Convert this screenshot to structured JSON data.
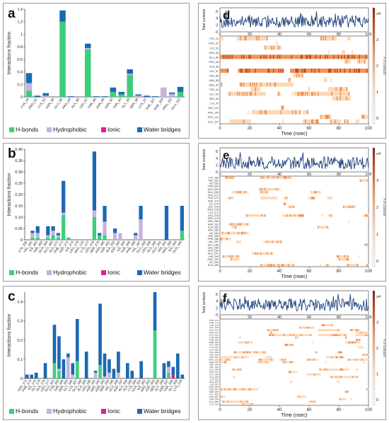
{
  "colors": {
    "hbond": "#3dce7c",
    "hydrophobic": "#c4b4dd",
    "ionic": "#e0218a",
    "water": "#1a69b5",
    "trace": "#1b3f7a",
    "heat_light": "#fbd8b8",
    "heat_mid": "#ee9557",
    "heat_dark": "#c9491f"
  },
  "legend_labels": [
    "H-bonds",
    "Hydrophobic",
    "Ionic",
    "Water bridges"
  ],
  "bar_panels": [
    {
      "letter": "a",
      "ylabel": "Interactions fraction",
      "ymax": 1.4,
      "ticks": [
        "0",
        "0.2",
        "0.4",
        "0.6",
        "0.8",
        "1",
        "1.2",
        "1.4"
      ],
      "tickvals": [
        0,
        0.2,
        0.4,
        0.6,
        0.8,
        1.0,
        1.2,
        1.4
      ],
      "categories": [
        "TYR_24",
        "PRO_51",
        "LYS_51",
        "ASN_56",
        "GLU_80",
        "PRO_85",
        "ALA_86",
        "LEU_87",
        "THR_88",
        "ASN_89",
        "ASN_93",
        "THR_94",
        "GLY_95",
        "SER_96",
        "LYS_97",
        "THR_107",
        "PHE_109",
        "PRO_111",
        "GLU_112"
      ],
      "series": [
        {
          "key": "hbond",
          "values": [
            0.1,
            0.0,
            0.0,
            0.0,
            1.2,
            0.0,
            0.0,
            0.76,
            0.0,
            0.0,
            0.08,
            0.04,
            0.35,
            0.0,
            0.0,
            0.0,
            0.0,
            0.0,
            0.08
          ]
        },
        {
          "key": "hydrophobic",
          "values": [
            0.12,
            0.0,
            0.02,
            0.0,
            0.0,
            0.0,
            0.0,
            0.02,
            0.0,
            0.0,
            0.0,
            0.0,
            0.02,
            0.02,
            0.0,
            0.0,
            0.15,
            0.05,
            0.0
          ]
        },
        {
          "key": "ionic",
          "values": [
            0.0,
            0.0,
            0.0,
            0.0,
            0.0,
            0.0,
            0.0,
            0.0,
            0.0,
            0.0,
            0.0,
            0.0,
            0.0,
            0.0,
            0.0,
            0.0,
            0.0,
            0.0,
            0.0
          ]
        },
        {
          "key": "water",
          "values": [
            0.16,
            0.02,
            0.04,
            0.0,
            0.18,
            0.01,
            0.0,
            0.07,
            0.01,
            0.01,
            0.07,
            0.04,
            0.07,
            0.02,
            0.02,
            0.01,
            0.0,
            0.02,
            0.08
          ]
        }
      ]
    },
    {
      "letter": "b",
      "ylabel": "Interactions fraction",
      "ymax": 0.4,
      "ticks": [
        "0",
        "0.05",
        "0.10",
        "0.15",
        "0.20",
        "0.25",
        "0.30",
        "0.35",
        "0.40"
      ],
      "tickvals": [
        0,
        0.05,
        0.1,
        0.15,
        0.2,
        0.25,
        0.3,
        0.35,
        0.4
      ],
      "categories": [
        "LYS_256",
        "VAL_261",
        "ILE_262",
        "THR_263",
        "GLN_264",
        "GLU_265",
        "ALA_271",
        "PHE_272",
        "ASP_273",
        "ILE_274",
        "LEU_275",
        "ARG_276",
        "LYS_277",
        "LEU_278",
        "SER_279",
        "ASN_280",
        "ASP_281",
        "ALA_282",
        "ASP_283",
        "ILE_284",
        "THR_285",
        "PHE_286",
        "VAL_287",
        "GLU_288",
        "LEU_289",
        "ALA_290",
        "GLU_291",
        "HIS_292",
        "ARG_293",
        "ILE_294",
        "GLN_295"
      ],
      "series": [
        {
          "key": "hbond",
          "values": [
            0.0,
            0.01,
            0.01,
            0.0,
            0.01,
            0.02,
            0.01,
            0.11,
            0.01,
            0.0,
            0.0,
            0.0,
            0.0,
            0.1,
            0.02,
            0.02,
            0.0,
            0.0,
            0.0,
            0.0,
            0.0,
            0.0,
            0.0,
            0.0,
            0.0,
            0.0,
            0.0,
            0.0,
            0.0,
            0.0,
            0.04
          ]
        },
        {
          "key": "hydrophobic",
          "values": [
            0.0,
            0.02,
            0.02,
            0.0,
            0.01,
            0.02,
            0.01,
            0.01,
            0.0,
            0.0,
            0.0,
            0.0,
            0.0,
            0.03,
            0.0,
            0.06,
            0.0,
            0.03,
            0.03,
            0.0,
            0.0,
            0.02,
            0.09,
            0.0,
            0.0,
            0.0,
            0.0,
            0.0,
            0.0,
            0.0,
            0.0
          ]
        },
        {
          "key": "ionic",
          "values": [
            0.0,
            0.0,
            0.0,
            0.0,
            0.0,
            0.0,
            0.0,
            0.0,
            0.0,
            0.0,
            0.0,
            0.0,
            0.0,
            0.0,
            0.0,
            0.0,
            0.0,
            0.0,
            0.0,
            0.0,
            0.0,
            0.0,
            0.0,
            0.0,
            0.0,
            0.0,
            0.0,
            0.0,
            0.0,
            0.0,
            0.0
          ]
        },
        {
          "key": "water",
          "values": [
            0.0,
            0.01,
            0.03,
            0.0,
            0.04,
            0.02,
            0.01,
            0.14,
            0.0,
            0.0,
            0.0,
            0.0,
            0.0,
            0.26,
            0.01,
            0.07,
            0.0,
            0.02,
            0.0,
            0.0,
            0.0,
            0.01,
            0.06,
            0.0,
            0.0,
            0.0,
            0.0,
            0.15,
            0.0,
            0.0,
            0.11
          ]
        }
      ]
    },
    {
      "letter": "c",
      "ylabel": "Interactions fraction",
      "ymax": 0.45,
      "ticks": [
        "0",
        "0.1",
        "0.2",
        "0.3",
        "0.4"
      ],
      "tickvals": [
        0,
        0.1,
        0.2,
        0.3,
        0.4
      ],
      "categories": [
        "THR_172",
        "PHE_173",
        "ILE_174",
        "GLY_175",
        "ALA_176",
        "LEU_177",
        "GLU_182",
        "TYR_183",
        "THR_184",
        "SER_185",
        "GLY_186",
        "LYS_187",
        "GLU_188",
        "ALA_189",
        "LEU_190",
        "ASP_191",
        "ARG_192",
        "ASN_193",
        "SER_194",
        "VAL_195",
        "GLU_196",
        "ASP_197",
        "ALA_198",
        "ALA_199",
        "LYS_200",
        "GLN_201",
        "ILE_202",
        "ARG_203",
        "ASP_204",
        "SER_205",
        "GLY_206",
        "ASN_207",
        "THR_208",
        "GLY_209",
        "LYS_210"
      ],
      "series": [
        {
          "key": "hbond",
          "values": [
            0.0,
            0.0,
            0.0,
            0.0,
            0.0,
            0.0,
            0.08,
            0.04,
            0.0,
            0.0,
            0.0,
            0.09,
            0.0,
            0.0,
            0.0,
            0.0,
            0.07,
            0.0,
            0.0,
            0.0,
            0.0,
            0.0,
            0.0,
            0.0,
            0.0,
            0.0,
            0.0,
            0.0,
            0.25,
            0.0,
            0.0,
            0.03,
            0.0,
            0.0,
            0.0
          ]
        },
        {
          "key": "hydrophobic",
          "values": [
            0.0,
            0.0,
            0.0,
            0.0,
            0.0,
            0.0,
            0.0,
            0.01,
            0.0,
            0.11,
            0.02,
            0.0,
            0.0,
            0.0,
            0.0,
            0.03,
            0.0,
            0.01,
            0.03,
            0.0,
            0.03,
            0.0,
            0.0,
            0.0,
            0.0,
            0.0,
            0.0,
            0.0,
            0.0,
            0.0,
            0.0,
            0.03,
            0.0,
            0.0,
            0.0
          ]
        },
        {
          "key": "ionic",
          "values": [
            0.0,
            0.0,
            0.0,
            0.0,
            0.0,
            0.0,
            0.0,
            0.0,
            0.0,
            0.0,
            0.0,
            0.0,
            0.0,
            0.0,
            0.0,
            0.0,
            0.0,
            0.0,
            0.0,
            0.0,
            0.0,
            0.0,
            0.0,
            0.0,
            0.0,
            0.0,
            0.0,
            0.0,
            0.0,
            0.0,
            0.0,
            0.0,
            0.02,
            0.0,
            0.0
          ]
        },
        {
          "key": "water",
          "values": [
            0.02,
            0.02,
            0.03,
            0.0,
            0.08,
            0.0,
            0.2,
            0.17,
            0.1,
            0.02,
            0.06,
            0.22,
            0.0,
            0.14,
            0.0,
            0.01,
            0.32,
            0.12,
            0.07,
            0.05,
            0.11,
            0.0,
            0.08,
            0.04,
            0.0,
            0.09,
            0.0,
            0.0,
            0.2,
            0.0,
            0.08,
            0.03,
            0.04,
            0.13,
            0.02
          ]
        }
      ]
    }
  ],
  "contact_panels": [
    {
      "letter": "d",
      "total_label": "Total contacts",
      "total_ticks": [
        "0",
        "2",
        "4",
        "6"
      ],
      "seed": 11,
      "mean": 3.0,
      "residue_labels": [
        "TYR_24",
        "PRO_51",
        "LYS_51",
        "ASN_56",
        "GLU_80",
        "PRO_85",
        "ALA_86",
        "LEU_87",
        "THR_88",
        "ASN_89",
        "ASN_93",
        "THR_94",
        "GLY_95",
        "SER_96",
        "LYS_97",
        "THR_107",
        "PHE_109",
        "PRO_111",
        "GLU_112"
      ],
      "densities": [
        0.25,
        0.05,
        0.05,
        0.08,
        0.97,
        0.05,
        0.03,
        0.78,
        0.05,
        0.06,
        0.15,
        0.15,
        0.55,
        0.05,
        0.04,
        0.05,
        0.35,
        0.15,
        0.15
      ]
    },
    {
      "letter": "e",
      "total_label": "Total contacts",
      "total_ticks": [
        "0",
        "2",
        "4",
        "6"
      ],
      "seed": 23,
      "mean": 2.6,
      "residue_labels": [
        "LYS_256",
        "VAL_261",
        "ILE_262",
        "THR_263",
        "GLN_264",
        "GLU_265",
        "ALA_271",
        "PHE_272",
        "ASP_273",
        "ILE_274",
        "LEU_275",
        "ARG_276",
        "LYS_277",
        "LEU_278",
        "SER_279",
        "ASN_280",
        "ASP_281",
        "ALA_282",
        "ASP_283",
        "ILE_284",
        "THR_285",
        "PHE_286",
        "VAL_287",
        "GLU_288",
        "LEU_289",
        "ALA_290",
        "GLU_291",
        "HIS_292",
        "ARG_293",
        "ILE_294",
        "GLN_295"
      ],
      "densities": [
        0.04,
        0.06,
        0.08,
        0.04,
        0.08,
        0.1,
        0.06,
        0.3,
        0.05,
        0.04,
        0.05,
        0.04,
        0.04,
        0.42,
        0.08,
        0.18,
        0.04,
        0.1,
        0.06,
        0.04,
        0.04,
        0.08,
        0.18,
        0.04,
        0.06,
        0.04,
        0.06,
        0.16,
        0.06,
        0.05,
        0.16
      ]
    },
    {
      "letter": "f",
      "total_label": "Total contacts",
      "total_ticks": [
        "0",
        "2",
        "4",
        "6"
      ],
      "seed": 37,
      "mean": 2.9,
      "residue_labels": [
        "THR_172",
        "PHE_173",
        "ILE_174",
        "GLY_175",
        "ALA_176",
        "LEU_177",
        "GLU_182",
        "TYR_183",
        "THR_184",
        "SER_185",
        "GLY_186",
        "LYS_187",
        "GLU_188",
        "ALA_189",
        "LEU_190",
        "ASP_191",
        "ARG_192",
        "ASN_193",
        "SER_194",
        "VAL_195",
        "GLU_196",
        "ASP_197",
        "ALA_198",
        "ALA_199",
        "LYS_200",
        "GLN_201",
        "ILE_202",
        "ARG_203",
        "ASP_204",
        "SER_205",
        "GLY_206",
        "ASN_207",
        "THR_208",
        "GLY_209",
        "LYS_210"
      ],
      "densities": [
        0.05,
        0.05,
        0.06,
        0.04,
        0.1,
        0.04,
        0.28,
        0.22,
        0.12,
        0.14,
        0.1,
        0.3,
        0.04,
        0.16,
        0.04,
        0.06,
        0.4,
        0.14,
        0.1,
        0.08,
        0.14,
        0.04,
        0.1,
        0.06,
        0.04,
        0.1,
        0.04,
        0.04,
        0.44,
        0.04,
        0.1,
        0.08,
        0.08,
        0.14,
        0.04
      ]
    }
  ],
  "time_axis": {
    "label": "Time (nsec)",
    "ticks": [
      "0",
      "20",
      "40",
      "60",
      "80",
      "100"
    ],
    "tickvals": [
      0,
      20,
      40,
      60,
      80,
      100
    ],
    "max": 100
  },
  "colorbar": {
    "label": "# of contacts",
    "ticks": [
      "≥4",
      "3",
      "2",
      "1",
      "0"
    ]
  }
}
